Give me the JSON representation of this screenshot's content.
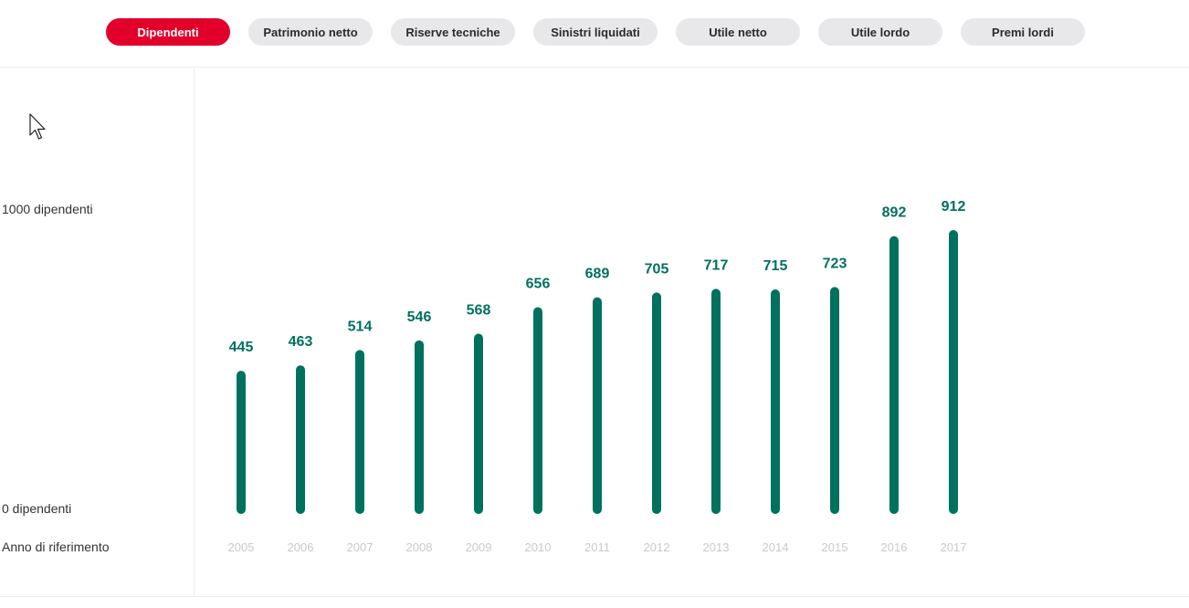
{
  "tabs": [
    {
      "label": "Dipendenti",
      "active": true
    },
    {
      "label": "Patrimonio netto",
      "active": false
    },
    {
      "label": "Riserve tecniche",
      "active": false
    },
    {
      "label": "Sinistri liquidati",
      "active": false
    },
    {
      "label": "Utile netto",
      "active": false
    },
    {
      "label": "Utile lordo",
      "active": false
    },
    {
      "label": "Premi lordi",
      "active": false
    }
  ],
  "axis": {
    "top_label": "1000 dipendenti",
    "bottom_label": "0 dipendenti",
    "x_label": "Anno di riferimento"
  },
  "colors": {
    "accent": "#e2002b",
    "bar": "#00705f",
    "tick": "#c9c9c9",
    "tab_bg": "#e8e8ea"
  },
  "chart_data": {
    "type": "bar",
    "categories": [
      "2005",
      "2006",
      "2007",
      "2008",
      "2009",
      "2010",
      "2011",
      "2012",
      "2013",
      "2014",
      "2015",
      "2016",
      "2017"
    ],
    "values": [
      445,
      463,
      514,
      546,
      568,
      656,
      689,
      705,
      717,
      715,
      723,
      892,
      912
    ],
    "xlabel": "Anno di riferimento",
    "ylabel": "",
    "ylim": [
      0,
      1000
    ],
    "grid": false
  }
}
